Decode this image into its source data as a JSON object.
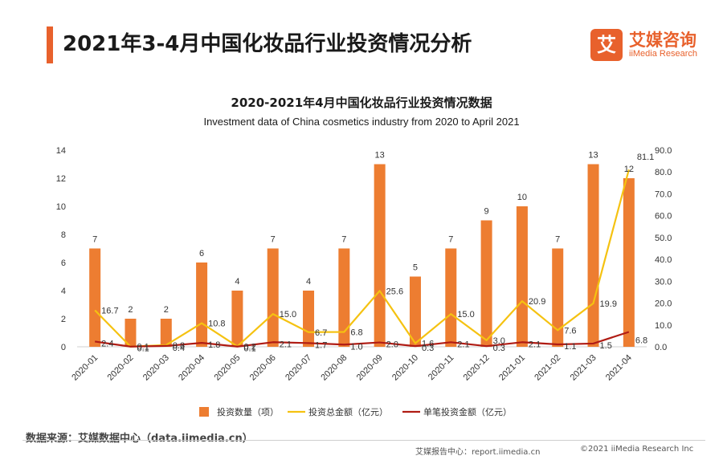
{
  "page": {
    "title": "2021年3-4月中国化妆品行业投资情况分析"
  },
  "brand": {
    "logo_glyph": "艾",
    "name_cn": "艾媒咨询",
    "name_en": "iiMedia Research"
  },
  "chart_data": {
    "type": "bar",
    "title": "2020-2021年4月中国化妆品行业投资情况数据",
    "subtitle": "Investment data of China cosmetics industry from 2020 to April 2021",
    "categories": [
      "2020-01",
      "2020-02",
      "2020-03",
      "2020-04",
      "2020-05",
      "2020-06",
      "2020-07",
      "2020-08",
      "2020-09",
      "2020-10",
      "2020-11",
      "2020-12",
      "2021-01",
      "2021-02",
      "2021-03",
      "2021-04"
    ],
    "y_left": {
      "min": 0,
      "max": 14,
      "ticks": [
        "0",
        "2",
        "4",
        "6",
        "8",
        "10",
        "12",
        "14"
      ]
    },
    "y_right": {
      "min": 0,
      "max": 90,
      "ticks": [
        "0.0",
        "10.0",
        "20.0",
        "30.0",
        "40.0",
        "50.0",
        "60.0",
        "70.0",
        "80.0",
        "90.0"
      ]
    },
    "grid": false,
    "legend_position": "bottom",
    "series": [
      {
        "name": "投资数量（项）",
        "type": "bar",
        "axis": "left",
        "color": "#ed7d31",
        "values": [
          7,
          2,
          2,
          6,
          4,
          7,
          4,
          7,
          13,
          5,
          7,
          9,
          10,
          7,
          13,
          12
        ],
        "labels": [
          "7",
          "2",
          "2",
          "6",
          "4",
          "7",
          "4",
          "7",
          "13",
          "5",
          "7",
          "9",
          "10",
          "7",
          "13",
          "12"
        ]
      },
      {
        "name": "投资总金额（亿元）",
        "type": "line",
        "axis": "right",
        "color": "#f5c211",
        "values": [
          16.7,
          0.1,
          0.8,
          10.8,
          0.2,
          15.0,
          6.7,
          6.8,
          25.6,
          1.6,
          15.0,
          3.0,
          20.9,
          7.6,
          19.9,
          81.1
        ],
        "labels": [
          "16.7",
          "0.1",
          "0.8",
          "10.8",
          "0.2",
          "15.0",
          "6.7",
          "6.8",
          "25.6",
          "1.6",
          "15.0",
          "3.0",
          "20.9",
          "7.6",
          "19.9",
          "81.1"
        ]
      },
      {
        "name": "单笔投资金额（亿元）",
        "type": "line",
        "axis": "right",
        "color": "#b01c14",
        "values": [
          2.4,
          0.1,
          0.4,
          1.8,
          0.1,
          2.1,
          1.7,
          1.0,
          2.0,
          0.3,
          2.1,
          0.3,
          2.1,
          1.1,
          1.5,
          6.8
        ],
        "labels": [
          "2.4",
          "0.1",
          "0.4",
          "1.8",
          "0.1",
          "2.1",
          "1.7",
          "1.0",
          "2.0",
          "0.3",
          "2.1",
          "0.3",
          "2.1",
          "1.1",
          "1.5",
          "6.8"
        ]
      }
    ]
  },
  "footer": {
    "source": "数据来源：艾媒数据中心（data.iimedia.cn）",
    "report_center": "艾媒报告中心：report.iimedia.cn",
    "copyright": "©2021  iiMedia Research  Inc"
  }
}
